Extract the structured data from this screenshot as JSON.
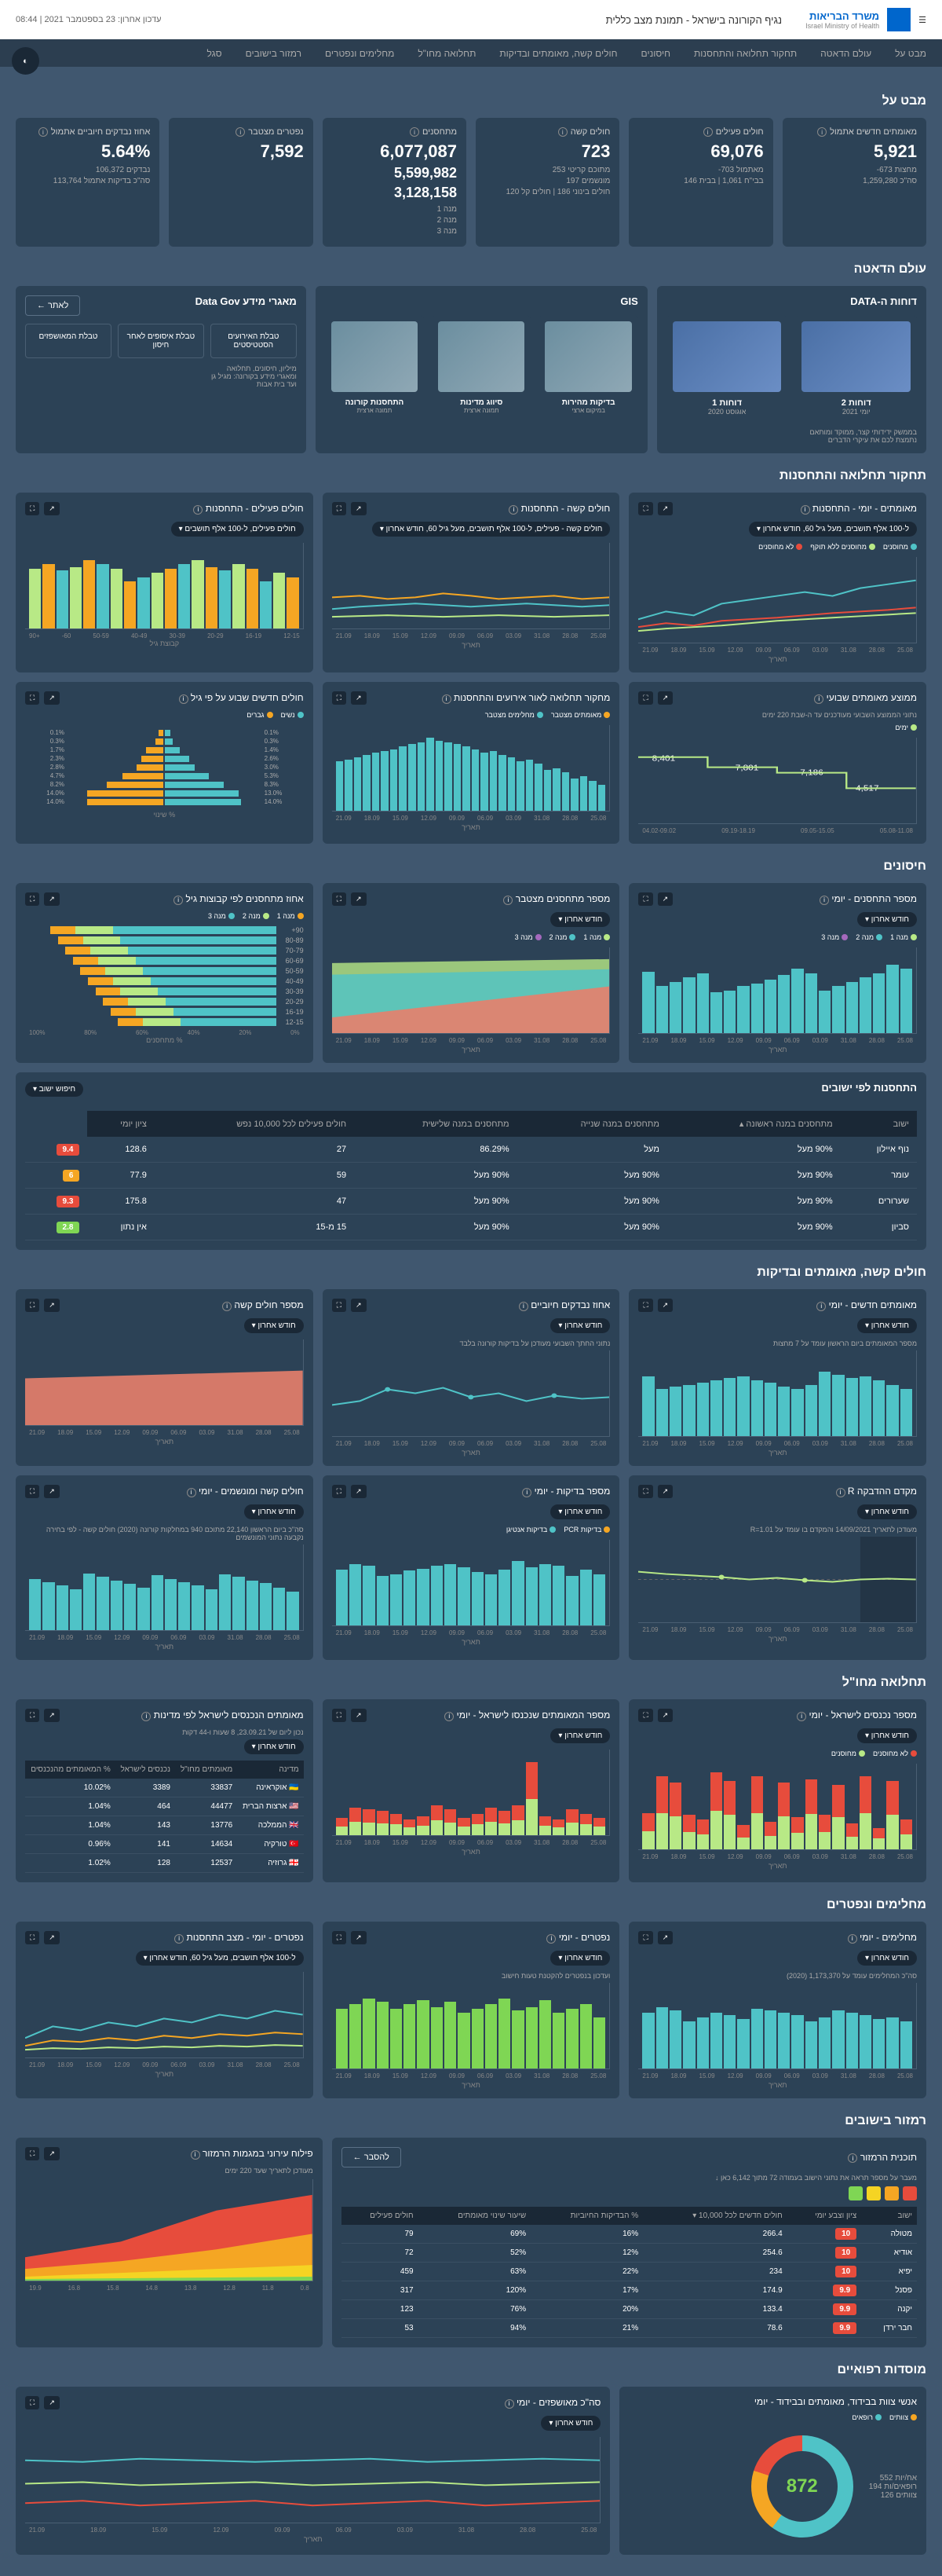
{
  "header": {
    "org": "משרד הבריאות",
    "sub": "Israel Ministry of Health",
    "title": "נגיף הקורונה בישראל - תמונת מצב כללית",
    "update": "עדכון אחרון: 23 בספטמבר 2021 | 08:44"
  },
  "nav": [
    "מבט על",
    "עולם הדאטה",
    "תחקור תחלואה והתחסנות",
    "חיסונים",
    "חולים קשה, מאומתים ובדיקות",
    "תחלואה מחו\"ל",
    "מחלימים ונפטרים",
    "רמזור בישובים",
    "סגל"
  ],
  "sections": {
    "overview": "מבט על",
    "data": "עולם הדאטה",
    "morbidity": "תחקור תחלואה והתחסנות",
    "vaccines": "חיסונים",
    "byCity": "התחסנות לפי ישובים",
    "severe": "חולים קשה, מאומתים ובדיקות",
    "abroad": "תחלואה מחו\"ל",
    "recovered": "מחלימים ונפטרים",
    "traffic": "רמזור בישובים",
    "staff": "מוסדות רפואיים"
  },
  "stats": [
    {
      "label": "מאומתים חדשים אתמול",
      "value": "5,921",
      "sub": "מחצות 673-\nסה\"כ 1,259,280"
    },
    {
      "label": "חולים פעילים",
      "value": "69,076",
      "sub": "מאתמול 703-\nבבי\"ח 1,061 | בבית 146"
    },
    {
      "label": "חולים קשה",
      "value": "723",
      "sub": "מתוכם קריטי 253\nמונשמים 197\nחולים בינוני 186 | חולים קל 120"
    },
    {
      "label": "מתחסנים",
      "value": "6,077,087",
      "sub2": "5,599,982",
      "sub3": "3,128,158",
      "sub": "מנה 1\nמנה 2\nמנה 3"
    },
    {
      "label": "נפטרים מצטבר",
      "value": "7,592"
    },
    {
      "label": "אחוז נבדקים חיוביים אתמול",
      "value": "5.64%",
      "sub": "נבדקים 106,372\nסה\"כ בדיקות אתמול 113,764"
    }
  ],
  "dataPanels": {
    "reports": {
      "title": "דוחות ה-DATA",
      "items": [
        {
          "name": "דוחות 2",
          "sub": "יומי 2021"
        },
        {
          "name": "דוחות 1",
          "sub": "אוגוסט 2020"
        }
      ],
      "desc": "בממשק ידידותי קצר, ממוקד ומותאם\nנתמצת לכם את עיקרי הדברים"
    },
    "gis": {
      "title": "GIS",
      "items": [
        {
          "name": "בדיקות מהירות",
          "sub": "במיקום ארצי"
        },
        {
          "name": "סיווג מדינות",
          "sub": "תמונה ארצית"
        },
        {
          "name": "התחסנות קורונה",
          "sub": "תמונה ארצית"
        }
      ]
    },
    "gov": {
      "title": "מאגרי מידע Data Gov",
      "btn": "לאתר ←",
      "items": [
        "טבלת האירועים הסטטיסטים",
        "טבלת איסופים לאחר חיסון",
        "טבלת המאושפזים"
      ],
      "desc": "מיליון, חיסונים, תחלואה\nומאגרי מידע בקורונה: מגיל גן\nועד בית אבות"
    }
  },
  "charts": {
    "c1": {
      "title": "מאומתים - יומי - התחסנות",
      "filter": "ל-100 אלף תושבים, מעל גיל 60, חודש אחרון ▾",
      "legend": [
        {
          "c": "#4fc3c7",
          "t": "מחוסנים"
        },
        {
          "c": "#b8e986",
          "t": "מחוסנים ללא תוקף"
        },
        {
          "c": "#e74c3c",
          "t": "לא מחוסנים"
        }
      ],
      "ylabel": "שיעור\nחולים\nפעילים",
      "xlabel": "תאריך"
    },
    "c2": {
      "title": "חולים קשה - התחסנות",
      "filter": "חולים קשה - פעילים, ל-100 אלף תושבים, מעל גיל 60, חודש אחרון ▾"
    },
    "c3": {
      "title": "חולים פעילים - התחסנות",
      "filter": "חולים פעילים, ל-100 אלף תושבים ▾"
    },
    "c4": {
      "title": "ממוצע מאומתים שבועי",
      "sub": "נתוני הממוצע השבועי מעודכנים עד ה-שבת 220 ימים",
      "legend": [
        {
          "c": "#b8e986",
          "t": "ימים"
        }
      ]
    },
    "c5": {
      "title": "מחקור תחלואה לאור אירועים והתחסנות",
      "legend": [
        {
          "c": "#f5a623",
          "t": "מאומתים מצטבר"
        },
        {
          "c": "#4fc3c7",
          "t": "מחלימים מצטבר"
        }
      ],
      "xlabel": "חודש"
    },
    "c6": {
      "title": "חולים חדשים שבוע על פי גיל",
      "legend": [
        {
          "c": "#4fc3c7",
          "t": "נשים"
        },
        {
          "c": "#f5a623",
          "t": "גברים"
        }
      ],
      "note": "% שינוי"
    },
    "v1": {
      "title": "מספר התחסנים - יומי",
      "btn": "חודש אחרון ▾",
      "legend": [
        {
          "c": "#b8e986",
          "t": "מנה 1"
        },
        {
          "c": "#4fc3c7",
          "t": "מנה 2"
        },
        {
          "c": "#a569bd",
          "t": "מנה 3"
        }
      ]
    },
    "v2": {
      "title": "מספר מתחסנים מצטבר",
      "btn": "חודש אחרון ▾"
    },
    "v3": {
      "title": "אחוז מתחסנים לפי קבוצות גיל",
      "legend": [
        {
          "c": "#f5a623",
          "t": "מנה 1"
        },
        {
          "c": "#b8e986",
          "t": "מנה 2"
        },
        {
          "c": "#4fc3c7",
          "t": "מנה 3"
        }
      ],
      "xlabel": "% מתחסנים",
      "ylabel": "קבוצת גיל"
    },
    "s1": {
      "title": "מאומתים חדשים - יומי",
      "btn": "חודש אחרון ▾",
      "sub": "מספר המאומתים ביום הראשון עומד על 7 מחצות"
    },
    "s2": {
      "title": "אחוז נבדקים חיוביים",
      "btn": "חודש אחרון ▾",
      "sub": "נתוני החתך השבועי מעודכן על בדיקות קורונה בלבד"
    },
    "s3": {
      "title": "מספר חולים קשה",
      "btn": "חודש אחרון ▾"
    },
    "s4": {
      "title": "מקדם ההדבקה R",
      "btn": "חודש אחרון ▾",
      "sub": "מעודכן לתאריך 14/09/2021 והמקדם בו עומד על R=1.01"
    },
    "s5": {
      "title": "מספר בדיקות - יומי",
      "btn": "חודש אחרון ▾",
      "legend": [
        {
          "c": "#f5a623",
          "t": "בדיקות PCR"
        },
        {
          "c": "#4fc3c7",
          "t": "בדיקות אנטיגן"
        }
      ]
    },
    "s6": {
      "title": "חולים קשה ומונשמים - יומי",
      "btn": "חודש אחרון ▾",
      "sub": "סה\"כ ביום הראשון 22,140 מתוכם 940 במחלקות קורונה (2020)\nחולים קשה - לפי בחירה נקבעה נתוני המונשמים"
    },
    "a1": {
      "title": "מספר נכנסים לישראל - יומי",
      "btn": "חודש אחרון ▾",
      "legend": [
        {
          "c": "#e74c3c",
          "t": "לא מחוסנים"
        },
        {
          "c": "#b8e986",
          "t": "מחוסנים"
        }
      ]
    },
    "a2": {
      "title": "מספר המאומתים שנכנסו לישראל - יומי",
      "btn": "חודש אחרון ▾"
    },
    "a3": {
      "title": "מאומתים הנכנסים לישראל לפי מדינות",
      "sub": "נכון ליום של 23.09.21, 8 שעות ו-44 דקות",
      "btn": "חודש אחרון ▾"
    },
    "r1": {
      "title": "מחלימים - יומי",
      "btn": "חודש אחרון ▾",
      "sub": "סה\"כ המחלימים עומד על 1,173,370 (2020)"
    },
    "r2": {
      "title": "נפטרים - יומי",
      "btn": "חודש אחרון ▾",
      "sub": "ועדכון בנפטרים להקטנת טעות חישוב"
    },
    "r3": {
      "title": "נפטרים - יומי - מצב התחסנות",
      "filter": "ל-100 אלף תושבים, מעל גיל 60, חודש אחרון ▾"
    },
    "t1": {
      "title": "תוכנית הרמזור",
      "sub": "מעבר על מספר תראה את נתוני הישוב בעמודה 72 מתוך 6,142\nכאן ↓",
      "btn": "להסבר ←"
    },
    "t2": {
      "title": "פילוח עירוני במגמות הרמזור",
      "sub": "מעודכן לתאריך שעד 220 ימים"
    },
    "m1": {
      "title": "אנשי צוות בבידוד, מאומתים ובבידוד - יומי",
      "legend": [
        {
          "c": "#f5a623",
          "t": "צוותים"
        },
        {
          "c": "#4fc3c7",
          "t": "רופאים"
        }
      ]
    },
    "m2": {
      "title": "סה\"כ מאושפזים - יומי"
    }
  },
  "cityTable": {
    "search": "חיפוש ישוב ▾",
    "cols": [
      "ישוב",
      "מתחסנים במנה ראשונה ▴",
      "מתחסנים במנה שנייה",
      "מתחסנים במנה שלישית",
      "חולים פעילים לכל 10,000 נפש",
      "ציון יומי"
    ],
    "rows": [
      {
        "city": "נוף איילון",
        "d1": "90% מעל",
        "d2": "מעל",
        "d3": "86.29%",
        "active": "27",
        "per": "128.6",
        "score": "9.4",
        "sc": "#e74c3c"
      },
      {
        "city": "עומר",
        "d1": "90% מעל",
        "d2": "90% מעל",
        "d3": "90% מעל",
        "active": "59",
        "per": "77.9",
        "score": "6",
        "sc": "#f5a623"
      },
      {
        "city": "שערורים",
        "d1": "90% מעל",
        "d2": "90% מעל",
        "d3": "90% מעל",
        "active": "47",
        "per": "175.8",
        "score": "9.3",
        "sc": "#e74c3c"
      },
      {
        "city": "סביון",
        "d1": "90% מעל",
        "d2": "90% מעל",
        "d3": "90% מעל",
        "active": "15 מ-15",
        "per": "אין נתון",
        "score": "2.8",
        "sc": "#7fd654"
      }
    ]
  },
  "countryTable": {
    "cols": [
      "מדינה",
      "מאומתים מחו\"ל",
      "נכנסים לישראל",
      "% המאומתים מהנכנסים"
    ],
    "rows": [
      {
        "flag": "🇺🇦",
        "name": "אוקראינה",
        "v1": "33837",
        "v2": "3389",
        "pct": "10.02%"
      },
      {
        "flag": "🇺🇸",
        "name": "ארצות הברית",
        "v1": "44477",
        "v2": "464",
        "pct": "1.04%"
      },
      {
        "flag": "🇬🇧",
        "name": "הממלכה",
        "v1": "13776",
        "v2": "143",
        "pct": "1.04%"
      },
      {
        "flag": "🇹🇷",
        "name": "טורקיה",
        "v1": "14634",
        "v2": "141",
        "pct": "0.96%"
      },
      {
        "flag": "🇬🇪",
        "name": "גרוזיה",
        "v1": "12537",
        "v2": "128",
        "pct": "1.02%"
      }
    ]
  },
  "trafficTable": {
    "cols": [
      "ישוב",
      "ציון וצבע יומי",
      "חולים חדשים לכל 10,000 ▾",
      "% הבדיקות החיוביות",
      "שיעור שינוי מאומתים",
      "חולים פעילים"
    ],
    "rows": [
      {
        "city": "מטולה",
        "score": "10",
        "c": "#e74c3c",
        "v1": "266.4",
        "v2": "16%",
        "v3": "69%",
        "v4": "79"
      },
      {
        "city": "אודיא",
        "score": "10",
        "c": "#e74c3c",
        "v1": "254.6",
        "v2": "12%",
        "v3": "52%",
        "v4": "72"
      },
      {
        "city": "יפיא",
        "score": "10",
        "c": "#e74c3c",
        "v1": "234",
        "v2": "22%",
        "v3": "63%",
        "v4": "459"
      },
      {
        "city": "פסנל",
        "score": "9.9",
        "c": "#e74c3c",
        "v1": "174.9",
        "v2": "17%",
        "v3": "120%",
        "v4": "317"
      },
      {
        "city": "יקנה",
        "score": "9.9",
        "c": "#e74c3c",
        "v1": "133.4",
        "v2": "20%",
        "v3": "76%",
        "v4": "123"
      },
      {
        "city": "חבר ירדן",
        "score": "9.9",
        "c": "#e74c3c",
        "v1": "78.6",
        "v2": "21%",
        "v3": "94%",
        "v4": "53"
      }
    ]
  },
  "staff": {
    "total": "872",
    "sub1": "552",
    "sub2": "194",
    "sub3": "126",
    "t1": "אח/יות",
    "t2": "רופאים/ות",
    "t3": "צוותים"
  },
  "colors": {
    "teal": "#4fc3c7",
    "green": "#b8e986",
    "lime": "#7fd654",
    "orange": "#f5a623",
    "red": "#e74c3c",
    "purple": "#a569bd",
    "coral": "#e8806b"
  },
  "barData": {
    "c3": [
      60,
      65,
      55,
      70,
      75,
      68,
      72,
      80,
      75,
      70,
      65,
      60,
      55,
      70,
      75,
      80,
      72,
      68,
      75,
      70
    ],
    "c4": [
      85,
      78,
      72,
      58
    ],
    "c4x": [
      "05.08-11.08",
      "09.05-15.05",
      "09.19-18.19",
      "04.02-09.02"
    ],
    "c5": [
      30,
      35,
      40,
      38,
      45,
      50,
      48,
      55,
      60,
      58,
      62,
      65,
      70,
      68,
      72,
      75,
      78,
      80,
      82,
      85,
      80,
      78,
      75,
      72,
      70,
      68,
      65,
      62,
      60,
      58
    ],
    "v1": [
      75,
      80,
      70,
      65,
      60,
      55,
      50,
      70,
      75,
      68,
      62,
      58,
      55,
      50,
      48,
      70,
      65,
      60,
      55,
      72
    ],
    "s1": [
      55,
      60,
      65,
      70,
      68,
      72,
      75,
      60,
      55,
      58,
      62,
      65,
      70,
      68,
      65,
      62,
      60,
      58,
      55,
      70
    ],
    "s3": [
      70,
      70,
      72,
      72,
      73,
      74,
      75,
      75,
      76,
      76,
      77,
      78,
      78,
      79,
      80,
      80,
      81,
      82,
      82,
      83
    ],
    "s5": [
      60,
      65,
      58,
      70,
      72,
      68,
      75,
      65,
      60,
      62,
      68,
      72,
      70,
      66,
      64,
      60,
      58,
      70,
      72,
      65
    ],
    "s6": [
      45,
      50,
      55,
      58,
      62,
      65,
      48,
      52,
      56,
      60,
      64,
      50,
      54,
      58,
      62,
      66,
      48,
      52,
      56,
      60
    ],
    "a1": [
      35,
      80,
      25,
      85,
      30,
      75,
      40,
      82,
      38,
      78,
      32,
      85,
      28,
      80,
      90,
      35,
      40,
      78,
      85,
      42
    ],
    "a2": [
      20,
      25,
      30,
      18,
      22,
      85,
      35,
      28,
      32,
      25,
      20,
      30,
      35,
      22,
      18,
      25,
      28,
      30,
      32,
      20
    ],
    "r1": [
      55,
      60,
      58,
      62,
      65,
      68,
      60,
      55,
      62,
      65,
      68,
      70,
      58,
      62,
      65,
      60,
      55,
      68,
      72,
      65
    ],
    "r2": [
      60,
      75,
      70,
      65,
      80,
      72,
      68,
      82,
      75,
      70,
      65,
      78,
      72,
      80,
      75,
      70,
      78,
      82,
      75,
      70
    ],
    "m2": [
      50,
      55,
      52,
      48,
      45,
      58,
      60,
      55,
      52,
      50,
      48,
      55,
      58,
      62,
      60,
      55,
      52,
      50,
      48,
      55
    ]
  },
  "ageGroups": [
    "90+",
    "80-89",
    "70-79",
    "60-69",
    "50-59",
    "40-49",
    "30-39",
    "20-29",
    "16-19",
    "12-15"
  ],
  "pyramid": [
    {
      "l": "0.1%",
      "r": "0.1%",
      "lw": 5,
      "rw": 5
    },
    {
      "l": "0.3%",
      "r": "0.3%",
      "lw": 8,
      "rw": 8
    },
    {
      "l": "1.4%",
      "r": "1.7%",
      "lw": 15,
      "rw": 18
    },
    {
      "l": "2.6%",
      "r": "2.3%",
      "lw": 25,
      "rw": 23
    },
    {
      "l": "3.0%",
      "r": "2.8%",
      "lw": 30,
      "rw": 28
    },
    {
      "l": "5.3%",
      "r": "4.7%",
      "lw": 45,
      "rw": 42
    },
    {
      "l": "8.3%",
      "r": "8.2%",
      "lw": 60,
      "rw": 58
    },
    {
      "l": "13.0%",
      "r": "14.0%",
      "lw": 75,
      "rw": 78
    },
    {
      "l": "14.0%",
      "r": "14.0%",
      "lw": 78,
      "rw": 78
    }
  ]
}
